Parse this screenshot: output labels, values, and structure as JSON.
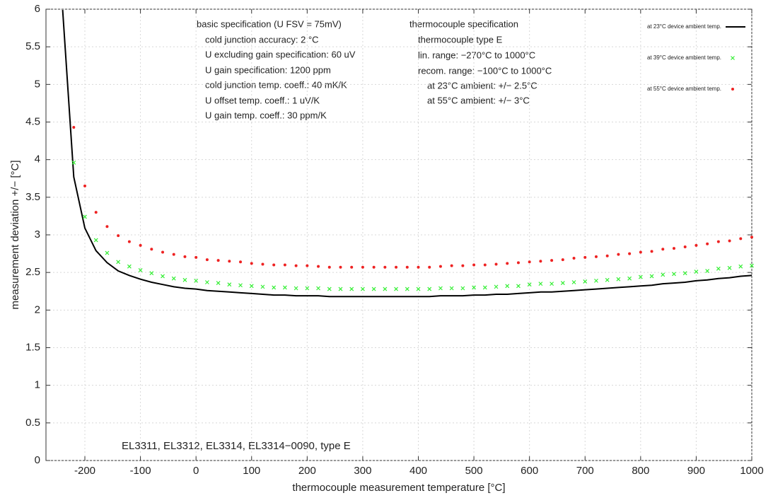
{
  "chart_data": {
    "type": "line",
    "x_label": "thermocouple measurement temperature [°C]",
    "y_label": "measurement deviation +/− [°C]",
    "xlim": [
      -270,
      1000
    ],
    "ylim": [
      0,
      6
    ],
    "xticks": [
      -200,
      -100,
      0,
      100,
      200,
      300,
      400,
      500,
      600,
      700,
      800,
      900,
      1000
    ],
    "yticks": [
      0,
      0.5,
      1,
      1.5,
      2,
      2.5,
      3,
      3.5,
      4,
      4.5,
      5,
      5.5,
      6
    ],
    "grid": true,
    "legend_position": "top-right",
    "spec_basic": [
      "basic specification (U FSV = 75mV)",
      "cold junction accuracy: 2 °C",
      "U excluding gain specification: 60 uV",
      "U gain specification: 1200 ppm",
      "cold junction temp. coeff.: 40 mK/K",
      "U offset temp. coeff.: 1 uV/K",
      "U gain temp. coeff.: 30 ppm/K"
    ],
    "spec_thermocouple": [
      "thermocouple specification",
      "thermocouple type E",
      "lin. range: −270°C to 1000°C",
      "recom. range: −100°C to 1000°C",
      "at 23°C ambient: +/− 2.5°C",
      "at 55°C ambient: +/− 3°C"
    ],
    "note": "EL3311, EL3312, EL3314, EL3314−0090, type E",
    "x": [
      -240,
      -220,
      -200,
      -180,
      -160,
      -140,
      -120,
      -100,
      -80,
      -60,
      -40,
      -20,
      0,
      20,
      40,
      60,
      80,
      100,
      120,
      140,
      160,
      180,
      200,
      220,
      240,
      260,
      280,
      300,
      320,
      340,
      360,
      380,
      400,
      420,
      440,
      460,
      480,
      500,
      520,
      540,
      560,
      580,
      600,
      620,
      640,
      660,
      680,
      700,
      720,
      740,
      760,
      780,
      800,
      820,
      840,
      860,
      880,
      900,
      920,
      940,
      960,
      980,
      1000
    ],
    "series": [
      {
        "name": "at 23°C device ambient temp.",
        "color": "#000000",
        "marker": "line",
        "values": [
          5.99,
          3.77,
          3.09,
          2.79,
          2.63,
          2.52,
          2.46,
          2.41,
          2.37,
          2.34,
          2.31,
          2.29,
          2.28,
          2.26,
          2.25,
          2.24,
          2.23,
          2.22,
          2.21,
          2.2,
          2.2,
          2.19,
          2.19,
          2.19,
          2.18,
          2.18,
          2.18,
          2.18,
          2.18,
          2.18,
          2.18,
          2.18,
          2.18,
          2.18,
          2.19,
          2.19,
          2.19,
          2.2,
          2.2,
          2.21,
          2.21,
          2.22,
          2.23,
          2.24,
          2.24,
          2.25,
          2.26,
          2.27,
          2.28,
          2.29,
          2.3,
          2.31,
          2.32,
          2.33,
          2.35,
          2.36,
          2.37,
          2.39,
          2.4,
          2.42,
          2.43,
          2.45,
          2.46
        ]
      },
      {
        "name": "at 39°C device ambient temp.",
        "color": "#33ee33",
        "marker": "cross",
        "values": [
          null,
          3.96,
          3.24,
          2.93,
          2.76,
          2.64,
          2.58,
          2.53,
          2.49,
          2.45,
          2.42,
          2.4,
          2.39,
          2.37,
          2.36,
          2.34,
          2.33,
          2.32,
          2.31,
          2.3,
          2.3,
          2.29,
          2.29,
          2.29,
          2.28,
          2.28,
          2.28,
          2.28,
          2.28,
          2.28,
          2.28,
          2.28,
          2.28,
          2.28,
          2.29,
          2.29,
          2.29,
          2.3,
          2.3,
          2.31,
          2.32,
          2.32,
          2.34,
          2.35,
          2.35,
          2.36,
          2.37,
          2.38,
          2.39,
          2.4,
          2.41,
          2.42,
          2.44,
          2.45,
          2.47,
          2.48,
          2.49,
          2.51,
          2.52,
          2.55,
          2.56,
          2.58,
          2.59
        ]
      },
      {
        "name": "at 55°C device ambient temp.",
        "color": "#ee2222",
        "marker": "dot",
        "values": [
          null,
          4.43,
          3.65,
          3.3,
          3.11,
          2.99,
          2.91,
          2.86,
          2.81,
          2.77,
          2.74,
          2.71,
          2.7,
          2.67,
          2.66,
          2.65,
          2.64,
          2.62,
          2.61,
          2.6,
          2.6,
          2.59,
          2.59,
          2.58,
          2.57,
          2.57,
          2.57,
          2.57,
          2.57,
          2.57,
          2.57,
          2.57,
          2.57,
          2.57,
          2.58,
          2.59,
          2.59,
          2.6,
          2.6,
          2.61,
          2.62,
          2.63,
          2.64,
          2.65,
          2.66,
          2.67,
          2.69,
          2.7,
          2.71,
          2.72,
          2.74,
          2.75,
          2.77,
          2.78,
          2.81,
          2.82,
          2.84,
          2.86,
          2.88,
          2.91,
          2.92,
          2.95,
          2.97
        ]
      }
    ]
  }
}
